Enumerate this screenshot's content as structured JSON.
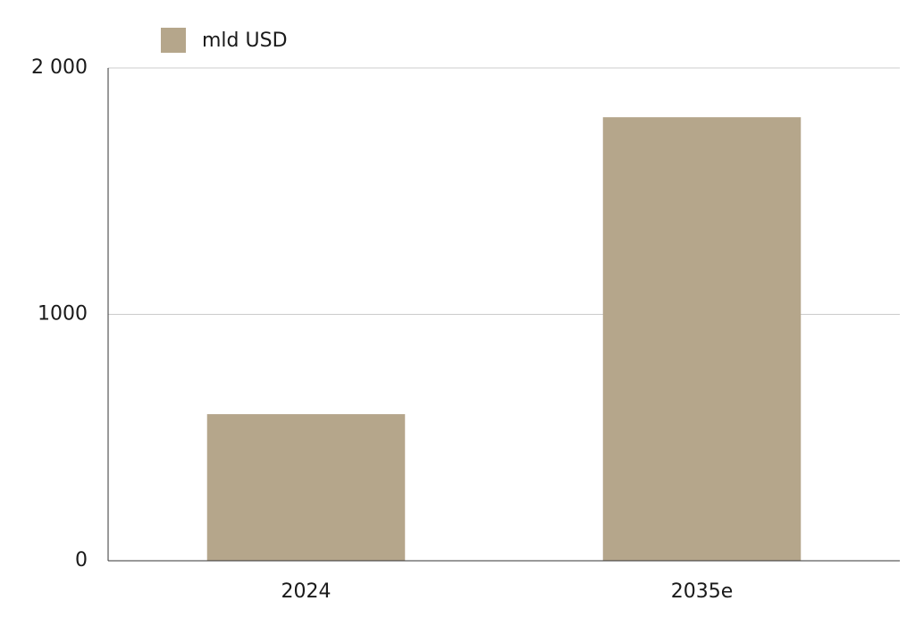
{
  "chart_data": {
    "type": "bar",
    "categories": [
      "2024",
      "2035e"
    ],
    "series": [
      {
        "name": "mld USD",
        "color": "#b5a68b",
        "values": [
          595,
          1800
        ]
      }
    ],
    "ylim": [
      0,
      2000
    ],
    "yticks": [
      0,
      {
        "value": 1000,
        "label": "1000"
      },
      {
        "value": 2000,
        "label": "2 000"
      }
    ],
    "grid": true
  }
}
